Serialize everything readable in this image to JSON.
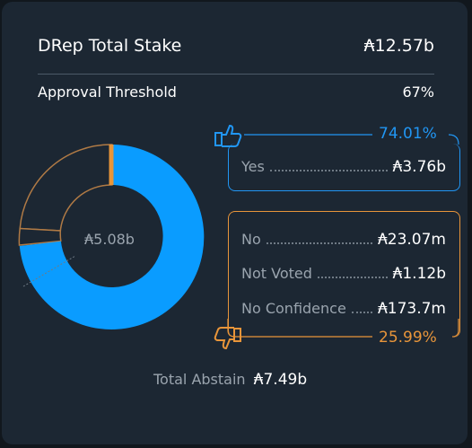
{
  "header": {
    "title": "DRep Total Stake",
    "total_stake": "₳12.57b",
    "threshold_label": "Approval Threshold",
    "threshold_value": "67%"
  },
  "donut": {
    "center_label": "₳5.08b",
    "colors": {
      "yes": "#2196f3",
      "no": "#e8953a",
      "neutral": "#1c2733",
      "outline": "#b07a45"
    }
  },
  "yes": {
    "percent": "74.01%",
    "label": "Yes",
    "value": "₳3.76b"
  },
  "no_side": {
    "percent": "25.99%",
    "items": [
      {
        "label": "No",
        "value": "₳23.07m"
      },
      {
        "label": "Not Voted",
        "value": "₳1.12b"
      },
      {
        "label": "No Confidence",
        "value": "₳173.7m"
      }
    ]
  },
  "abstain": {
    "label": "Total Abstain",
    "value": "₳7.49b"
  },
  "icons": {
    "yes": "thumbs-up-icon",
    "no": "thumbs-down-icon"
  }
}
